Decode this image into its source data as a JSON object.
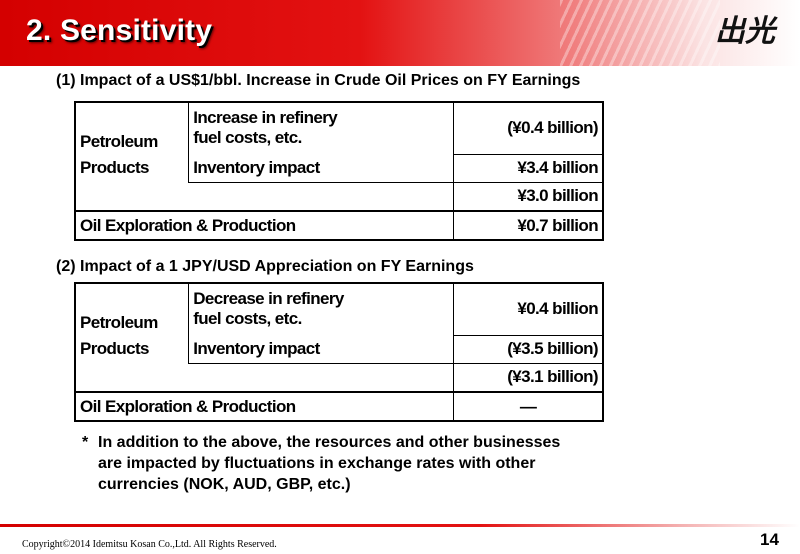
{
  "header": {
    "title": "2. Sensitivity"
  },
  "section1": {
    "title": "(1) Impact of a US$1/bbl. Increase in Crude Oil Prices on FY Earnings",
    "group_label_line1": "Petroleum",
    "group_label_line2": "Products",
    "row1_label_line1": "Increase in refinery",
    "row1_label_line2": "fuel costs, etc.",
    "row1_value": "(¥0.4 billion)",
    "row2_label": "Inventory impact",
    "row2_value": "¥3.4 billion",
    "subtotal_value": "¥3.0 billion",
    "oil_label": "Oil Exploration & Production",
    "oil_value": "¥0.7 billion"
  },
  "section2": {
    "title": "(2) Impact of a 1 JPY/USD Appreciation on FY Earnings",
    "group_label_line1": "Petroleum",
    "group_label_line2": "Products",
    "row1_label_line1": "Decrease in refinery",
    "row1_label_line2": "fuel costs, etc.",
    "row1_value": "¥0.4 billion",
    "row2_label": "Inventory impact",
    "row2_value": "(¥3.5 billion)",
    "subtotal_value": "(¥3.1 billion)",
    "oil_label": "Oil Exploration & Production",
    "oil_value": "—"
  },
  "note": {
    "marker": "*",
    "line1": "In addition to the above, the resources and other businesses",
    "line2": "are impacted by fluctuations in exchange rates with other",
    "line3": "currencies (NOK, AUD, GBP, etc.)"
  },
  "footer": {
    "copyright": "Copyright©2014 Idemitsu Kosan Co.,Ltd. All Rights Reserved.",
    "page_number": "14"
  },
  "colors": {
    "accent": "#d40000"
  },
  "logo": {
    "icon": "idemitsu-logo-icon",
    "text": "出光"
  }
}
